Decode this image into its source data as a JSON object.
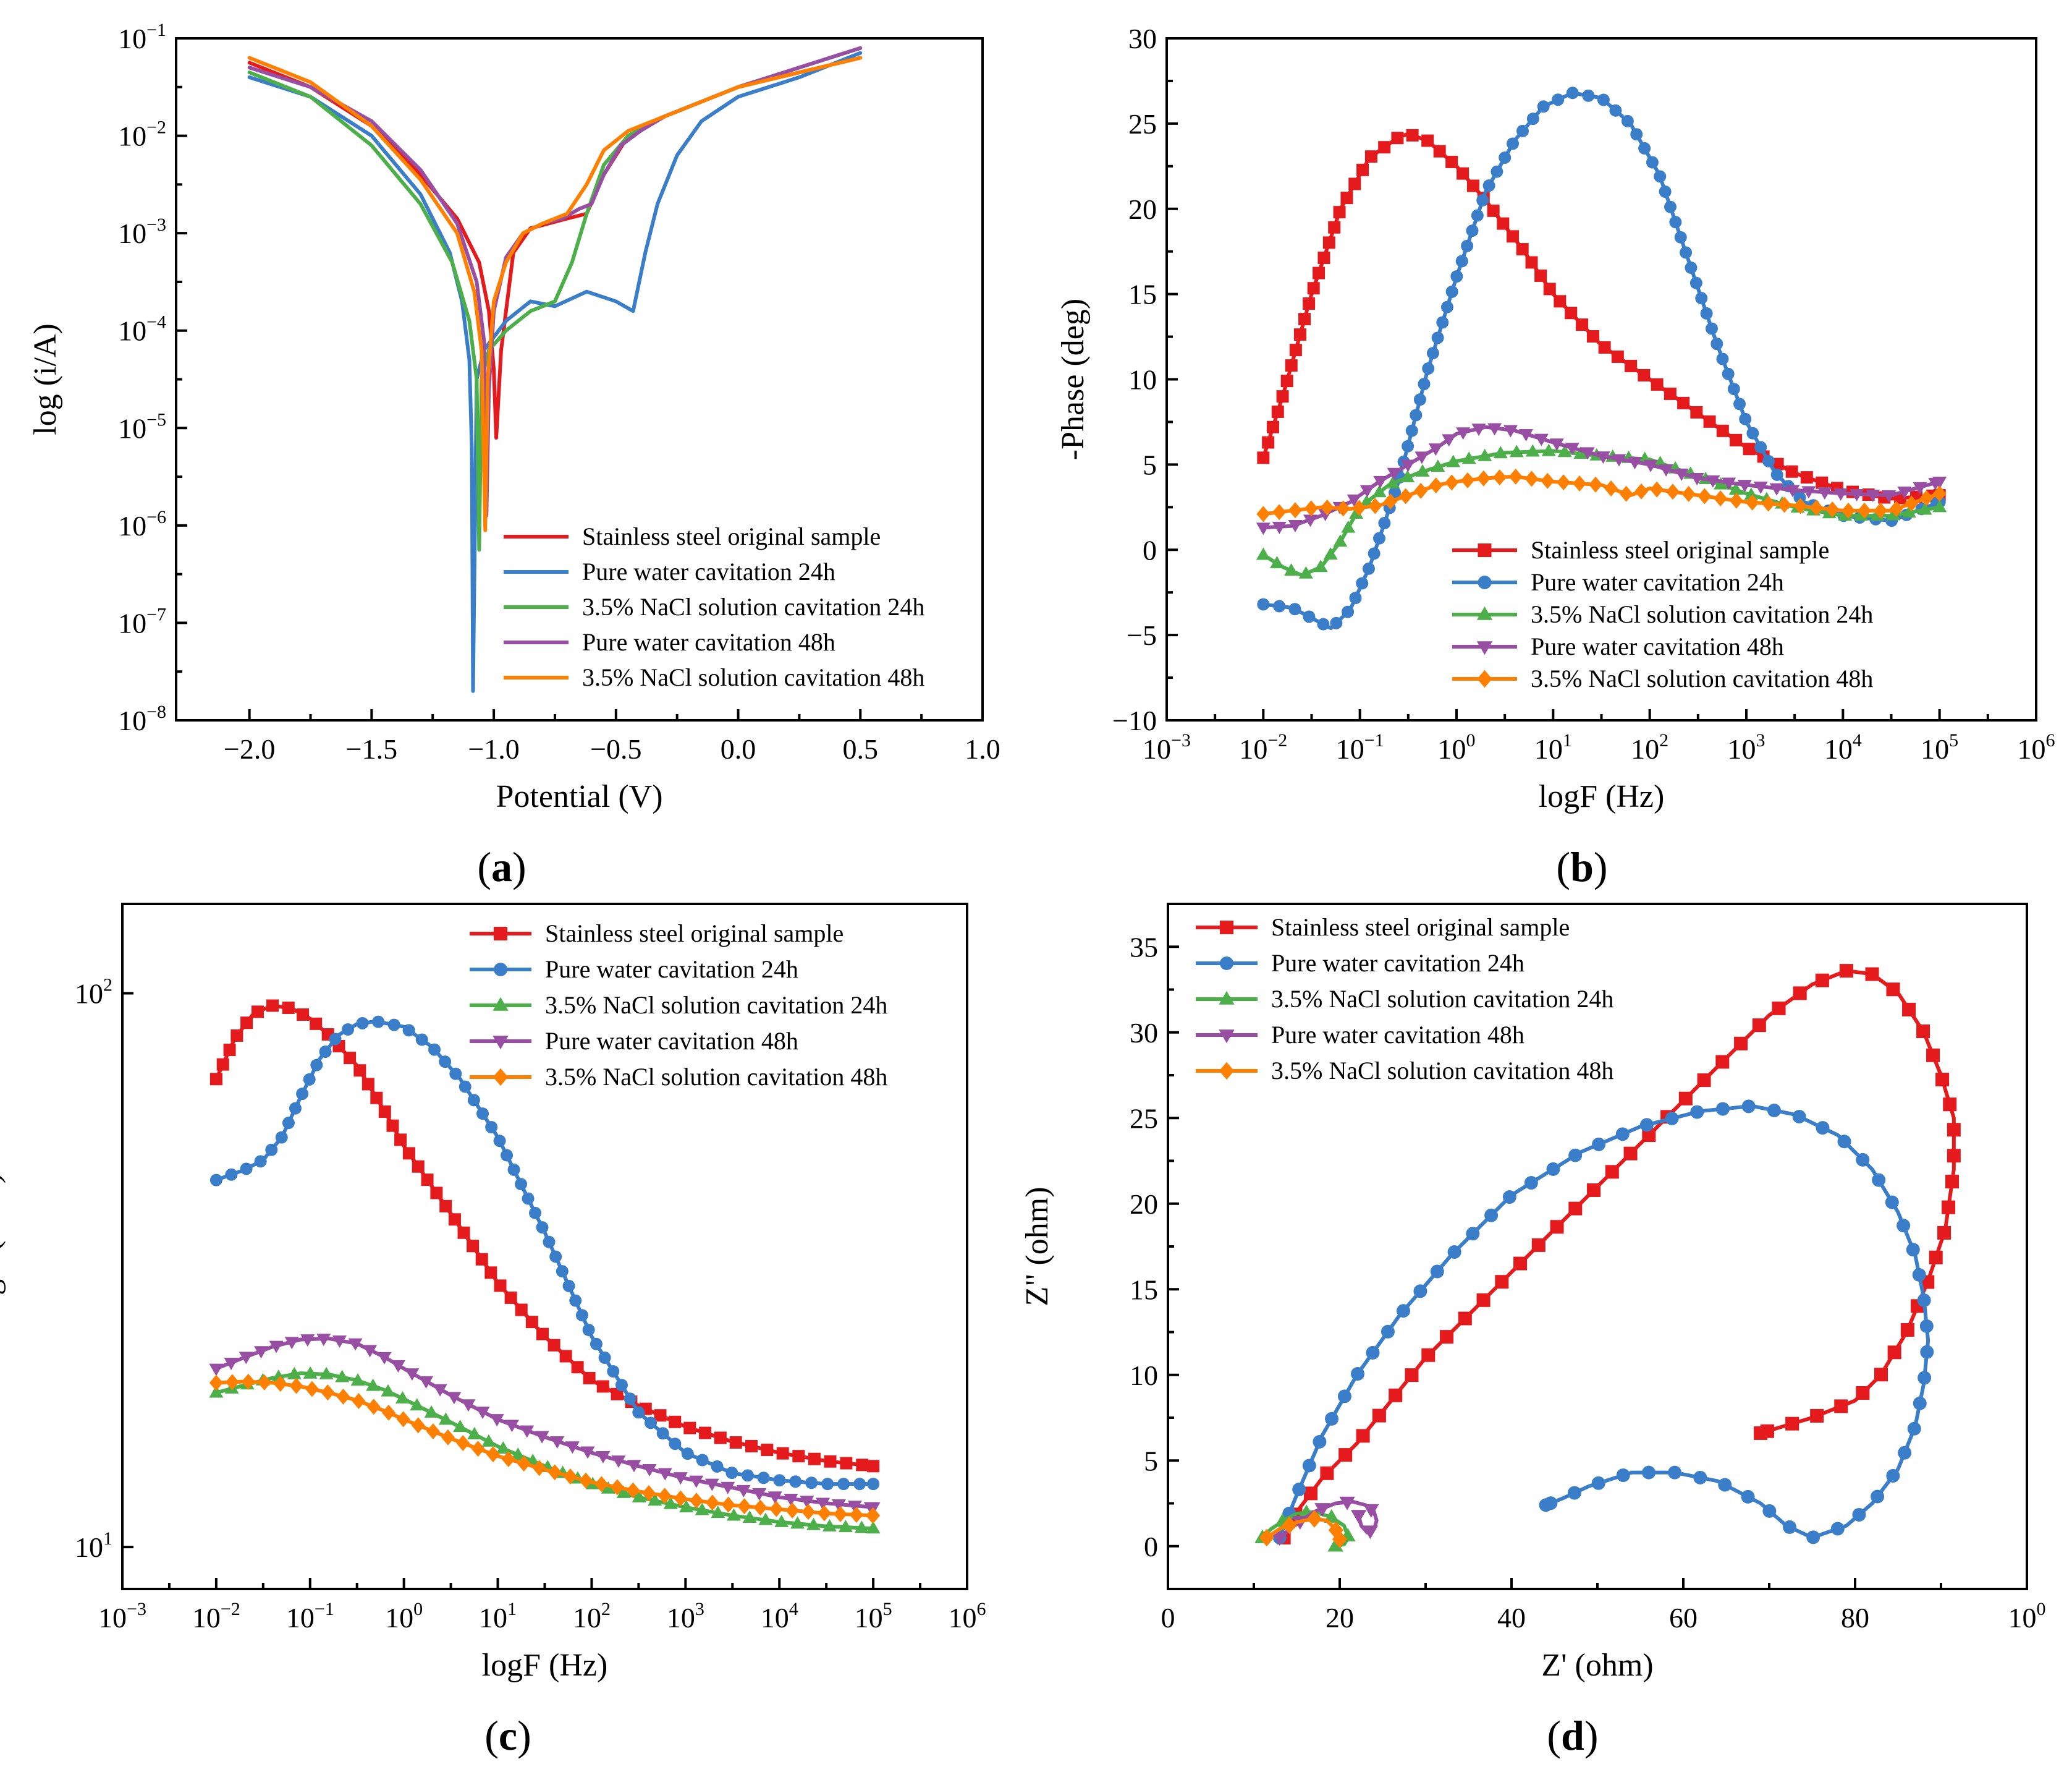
{
  "colors": {
    "original": "#e41a1c",
    "water24": "#3a7dc9",
    "nacl24": "#4daf4a",
    "water48": "#984ea3",
    "nacl48": "#ff7f00"
  },
  "legend_entries": [
    "Stainless steel original sample",
    "Pure water cavitation 24h",
    "3.5% NaCl solution cavitation 24h",
    "Pure water cavitation 48h",
    "3.5% NaCl solution cavitation 48h"
  ],
  "panel_labels": [
    "(a)",
    "(b)",
    "(c)",
    "(d)"
  ],
  "chart_data": [
    {
      "panel": "(a)",
      "type": "line",
      "xlabel": "Potential (V)",
      "ylabel": "log (i/A)",
      "xlim": [
        -2.3,
        1.0
      ],
      "ylim_log10": [
        -8,
        -1
      ],
      "x_ticks": [
        "−2.0",
        "−1.5",
        "−1.0",
        "−0.5",
        "0.0",
        "0.5",
        "1.0"
      ],
      "y_ticks": [
        "10-8",
        "10-7",
        "10-6",
        "10-5",
        "10-4",
        "10-3",
        "10-2",
        "10-1"
      ],
      "legend": "bottom-right",
      "series": [
        {
          "name": "Stainless steel original sample",
          "x": [
            -2.0,
            -1.75,
            -1.5,
            -1.3,
            -1.15,
            -1.06,
            -1.02,
            -1.0,
            -0.99,
            -0.97,
            -0.92,
            -0.85,
            -0.7,
            -0.62,
            -0.55,
            -0.45,
            -0.3,
            0.0,
            0.25,
            0.5
          ],
          "y": [
            -1.25,
            -1.5,
            -1.9,
            -2.4,
            -2.85,
            -3.3,
            -3.8,
            -4.4,
            -5.1,
            -4.2,
            -3.2,
            -2.95,
            -2.85,
            -2.8,
            -2.4,
            -2.0,
            -1.8,
            -1.5,
            -1.35,
            -1.2
          ]
        },
        {
          "name": "Pure water cavitation 24h",
          "x": [
            -2.0,
            -1.75,
            -1.5,
            -1.3,
            -1.18,
            -1.13,
            -1.1,
            -1.09,
            -1.085,
            -1.07,
            -1.04,
            -0.95,
            -0.85,
            -0.75,
            -0.62,
            -0.5,
            -0.43,
            -0.38,
            -0.33,
            -0.25,
            -0.15,
            0.0,
            0.25,
            0.5
          ],
          "y": [
            -1.4,
            -1.6,
            -2.0,
            -2.6,
            -3.2,
            -3.7,
            -4.3,
            -5.2,
            -7.7,
            -4.5,
            -4.2,
            -3.9,
            -3.7,
            -3.75,
            -3.6,
            -3.7,
            -3.8,
            -3.2,
            -2.7,
            -2.2,
            -1.85,
            -1.6,
            -1.4,
            -1.15
          ]
        },
        {
          "name": "3.5% NaCl solution cavitation 24h",
          "x": [
            -2.0,
            -1.75,
            -1.5,
            -1.3,
            -1.17,
            -1.1,
            -1.07,
            -1.06,
            -1.05,
            -1.02,
            -0.95,
            -0.85,
            -0.75,
            -0.68,
            -0.62,
            -0.55,
            -0.45,
            -0.3,
            0.0,
            0.25,
            0.5
          ],
          "y": [
            -1.35,
            -1.6,
            -2.1,
            -2.7,
            -3.3,
            -3.9,
            -4.5,
            -6.25,
            -4.5,
            -4.2,
            -4.0,
            -3.8,
            -3.7,
            -3.3,
            -2.8,
            -2.3,
            -2.0,
            -1.8,
            -1.5,
            -1.3,
            -1.1
          ]
        },
        {
          "name": "Pure water cavitation 48h",
          "x": [
            -2.0,
            -1.75,
            -1.5,
            -1.3,
            -1.15,
            -1.07,
            -1.04,
            -1.03,
            -1.02,
            -1.0,
            -0.95,
            -0.88,
            -0.8,
            -0.72,
            -0.65,
            -0.6,
            -0.55,
            -0.48,
            -0.4,
            -0.3,
            0.0,
            0.25,
            0.5
          ],
          "y": [
            -1.3,
            -1.5,
            -1.85,
            -2.35,
            -2.9,
            -3.5,
            -4.1,
            -5.9,
            -4.6,
            -3.8,
            -3.25,
            -3.0,
            -2.9,
            -2.85,
            -2.75,
            -2.7,
            -2.4,
            -2.1,
            -1.95,
            -1.8,
            -1.5,
            -1.3,
            -1.1
          ]
        },
        {
          "name": "3.5% NaCl solution cavitation 48h",
          "x": [
            -2.0,
            -1.75,
            -1.5,
            -1.3,
            -1.15,
            -1.08,
            -1.05,
            -1.035,
            -1.025,
            -1.0,
            -0.95,
            -0.88,
            -0.8,
            -0.7,
            -0.62,
            -0.55,
            -0.45,
            -0.3,
            0.0,
            0.25,
            0.5
          ],
          "y": [
            -1.2,
            -1.45,
            -1.9,
            -2.45,
            -3.0,
            -3.6,
            -4.2,
            -6.05,
            -4.5,
            -3.7,
            -3.3,
            -3.0,
            -2.9,
            -2.8,
            -2.5,
            -2.15,
            -1.95,
            -1.8,
            -1.5,
            -1.35,
            -1.2
          ]
        }
      ]
    },
    {
      "panel": "(b)",
      "type": "line",
      "xlabel": "logF (Hz)",
      "ylabel": "-Phase (deg)",
      "xlim_log10": [
        -3,
        6
      ],
      "ylim": [
        -10,
        30
      ],
      "x_ticks": [
        "10-3",
        "10-2",
        "10-1",
        "100",
        "101",
        "102",
        "103",
        "104",
        "105",
        "106"
      ],
      "y_ticks": [
        "−10",
        "−5",
        "0",
        "5",
        "10",
        "15",
        "20",
        "25",
        "30"
      ],
      "legend": "bottom-center",
      "series": [
        {
          "name": "Stainless steel original sample",
          "logx": [
            -2,
            -1.8,
            -1.5,
            -1.2,
            -0.9,
            -0.6,
            -0.5,
            -0.3,
            0,
            0.3,
            0.7,
            1,
            1.5,
            2,
            2.5,
            3,
            3.5,
            4,
            4.5,
            5
          ],
          "y": [
            5.4,
            9,
            15,
            20,
            23,
            24.2,
            24.4,
            24,
            22.5,
            20.5,
            17.5,
            15,
            12,
            10,
            8,
            6,
            4.5,
            3.5,
            3,
            3.2
          ]
        },
        {
          "name": "Pure water cavitation 24h",
          "logx": [
            -2,
            -1.7,
            -1.5,
            -1.3,
            -1.1,
            -0.9,
            -0.6,
            -0.3,
            0,
            0.3,
            0.6,
            0.9,
            1.2,
            1.5,
            1.8,
            2.1,
            2.4,
            2.7,
            3,
            3.3,
            3.6,
            4,
            4.5,
            5
          ],
          "y": [
            -3.2,
            -3.4,
            -4.0,
            -4.6,
            -3.5,
            -1.0,
            4.0,
            10.5,
            16,
            21,
            24,
            26,
            26.8,
            26.5,
            25,
            22,
            17,
            12,
            7.5,
            4.5,
            2.8,
            2.0,
            1.7,
            2.8
          ]
        },
        {
          "name": "3.5% NaCl solution cavitation 24h",
          "logx": [
            -2,
            -1.8,
            -1.6,
            -1.4,
            -1.2,
            -1,
            -0.7,
            -0.4,
            0,
            0.5,
            1,
            1.5,
            2,
            2.5,
            3,
            3.5,
            4,
            4.5,
            5
          ],
          "y": [
            -0.3,
            -1.0,
            -1.5,
            -1.0,
            0.5,
            2.5,
            3.8,
            4.5,
            5.2,
            5.7,
            5.8,
            5.5,
            5.3,
            4.3,
            3.3,
            2.5,
            2.0,
            2.0,
            2.5
          ]
        },
        {
          "name": "Pure water cavitation 48h",
          "logx": [
            -2,
            -1.7,
            -1.4,
            -1.1,
            -0.8,
            -0.5,
            -0.2,
            0,
            0.3,
            0.6,
            1,
            1.5,
            2,
            2.5,
            3,
            3.5,
            4,
            4.5,
            5
          ],
          "y": [
            1.3,
            1.4,
            2.0,
            2.8,
            4.0,
            5.0,
            6.0,
            6.8,
            7.2,
            7.0,
            6.3,
            5.5,
            5.0,
            4.2,
            3.8,
            3.5,
            3.3,
            3.2,
            4.0
          ]
        },
        {
          "name": "3.5% NaCl solution cavitation 48h",
          "logx": [
            -2,
            -1.7,
            -1.4,
            -1.1,
            -0.8,
            -0.5,
            -0.2,
            0,
            0.3,
            0.6,
            1,
            1.5,
            1.8,
            2,
            2.5,
            3,
            3.5,
            4,
            4.5,
            5
          ],
          "y": [
            2.1,
            2.3,
            2.5,
            2.4,
            2.6,
            3.2,
            3.8,
            4.0,
            4.2,
            4.3,
            4.0,
            3.8,
            3.2,
            3.6,
            3.2,
            2.8,
            2.6,
            2.3,
            2.3,
            3.3
          ]
        }
      ]
    },
    {
      "panel": "(c)",
      "type": "line",
      "xlabel": "logF (Hz)",
      "ylabel": "logZ (ohm)",
      "xlim_log10": [
        -3,
        6
      ],
      "ylim": [
        8.4,
        145
      ],
      "y_scale": "log",
      "x_ticks": [
        "10-3",
        "10-2",
        "10-1",
        "100",
        "101",
        "102",
        "103",
        "104",
        "105",
        "106"
      ],
      "y_ticks": [
        "101",
        "102"
      ],
      "legend": "top-right",
      "series": [
        {
          "name": "Stainless steel original sample",
          "logx": [
            -2,
            -1.8,
            -1.6,
            -1.4,
            -1.2,
            -1,
            -0.8,
            -0.5,
            -0.2,
            0,
            0.5,
            1,
            1.5,
            2,
            2.5,
            3,
            3.5,
            4,
            4.5,
            5
          ],
          "y": [
            70,
            83,
            92,
            95,
            94,
            90,
            84,
            74,
            61,
            53,
            40,
            30,
            24,
            20,
            18,
            16.5,
            15.5,
            14.8,
            14.3,
            14.0
          ]
        },
        {
          "name": "Pure water cavitation 24h",
          "logx": [
            -2,
            -1.7,
            -1.5,
            -1.3,
            -1.1,
            -0.9,
            -0.7,
            -0.5,
            -0.3,
            0,
            0.3,
            0.6,
            1,
            1.5,
            2,
            2.5,
            3,
            3.5,
            4,
            4.5,
            5
          ],
          "y": [
            46,
            48,
            50,
            55,
            65,
            76,
            84,
            88,
            89,
            87,
            80,
            70,
            55,
            37,
            24,
            17.5,
            14.8,
            13.6,
            13.2,
            13.0,
            13.0
          ]
        },
        {
          "name": "3.5% NaCl solution cavitation 24h",
          "logx": [
            -2,
            -1.7,
            -1.4,
            -1.1,
            -0.8,
            -0.5,
            -0.2,
            0,
            0.5,
            1,
            1.5,
            2,
            2.5,
            3,
            3.5,
            4,
            4.5,
            5
          ],
          "y": [
            19.0,
            19.6,
            20.2,
            20.6,
            20.5,
            20.0,
            19.2,
            18.5,
            16.8,
            15.2,
            14.0,
            13.0,
            12.3,
            11.8,
            11.4,
            11.1,
            10.9,
            10.8
          ]
        },
        {
          "name": "Pure water cavitation 48h",
          "logx": [
            -2,
            -1.7,
            -1.4,
            -1.1,
            -0.8,
            -0.5,
            -0.2,
            0,
            0.5,
            1,
            1.5,
            2,
            2.5,
            3,
            3.5,
            4,
            4.5,
            5
          ],
          "y": [
            21.0,
            22.0,
            23.0,
            23.7,
            23.8,
            23.3,
            22.0,
            21.0,
            18.8,
            17.0,
            15.8,
            14.8,
            14.0,
            13.3,
            12.8,
            12.3,
            12.0,
            11.8
          ]
        },
        {
          "name": "3.5% NaCl solution cavitation 48h",
          "logx": [
            -2,
            -1.7,
            -1.4,
            -1.1,
            -0.8,
            -0.5,
            -0.2,
            0,
            0.5,
            1,
            1.5,
            2,
            2.5,
            3,
            3.5,
            4,
            4.5,
            5
          ],
          "y": [
            19.8,
            19.9,
            19.8,
            19.5,
            19.0,
            18.4,
            17.6,
            17.0,
            15.7,
            14.6,
            13.8,
            13.1,
            12.6,
            12.2,
            11.9,
            11.7,
            11.5,
            11.4
          ]
        }
      ]
    },
    {
      "panel": "(d)",
      "type": "scatter",
      "xlabel": "Z' (ohm)",
      "ylabel": "Z\" (ohm)",
      "xlim": [
        0,
        100
      ],
      "ylim": [
        -2.5,
        37.5
      ],
      "x_ticks": [
        "0",
        "20",
        "40",
        "60",
        "80",
        "100"
      ],
      "y_ticks": [
        "0",
        "5",
        "10",
        "15",
        "20",
        "25",
        "30",
        "35"
      ],
      "legend": "top-left",
      "series": [
        {
          "name": "Stainless steel original sample",
          "x": [
            13.5,
            15,
            18,
            22,
            26,
            30,
            35,
            40,
            45,
            50,
            55,
            60,
            65,
            70,
            75,
            79,
            82,
            85,
            88,
            90,
            91.5,
            91.5,
            90.5,
            88.5,
            86,
            83,
            80,
            75,
            69
          ],
          "y": [
            0.5,
            2,
            4,
            6,
            8.5,
            11,
            13.5,
            16,
            18.5,
            21,
            23.5,
            26,
            28.5,
            31,
            32.8,
            33.6,
            33.4,
            32.3,
            30,
            27.5,
            25,
            22,
            18.5,
            15.5,
            12.5,
            10,
            8.5,
            7.5,
            6.6
          ]
        },
        {
          "name": "Pure water cavitation 24h",
          "x": [
            13,
            15,
            18,
            22,
            27,
            33,
            40,
            48,
            55,
            62,
            68,
            73,
            78,
            82,
            85,
            87,
            88,
            88.5,
            88,
            87,
            85,
            82,
            79,
            75,
            72,
            69,
            64,
            59,
            54,
            49,
            46,
            44
          ],
          "y": [
            0.5,
            3,
            6.5,
            10,
            13.5,
            17,
            20.5,
            23,
            24.5,
            25.4,
            25.7,
            25.2,
            24,
            22,
            19.5,
            17,
            14.5,
            12,
            9.5,
            7,
            4.5,
            2.5,
            1.2,
            0.5,
            1.2,
            2.5,
            3.8,
            4.3,
            4.3,
            3.5,
            2.8,
            2.4
          ]
        },
        {
          "name": "3.5% NaCl solution cavitation 24h",
          "x": [
            11,
            12,
            13.5,
            15,
            17,
            19,
            20.5,
            21,
            20.5,
            19.5
          ],
          "y": [
            0.5,
            1.0,
            1.5,
            1.9,
            2.0,
            1.7,
            1.2,
            0.5,
            0.1,
            0.0
          ]
        },
        {
          "name": "Pure water cavitation 48h",
          "x": [
            13,
            15,
            17,
            19.5,
            21.5,
            23,
            24,
            24.3,
            24,
            23.2,
            22.5,
            22.2
          ],
          "y": [
            0.5,
            1.3,
            2.0,
            2.5,
            2.6,
            2.4,
            2.0,
            1.5,
            1.0,
            0.8,
            1.2,
            1.8
          ]
        },
        {
          "name": "3.5% NaCl solution cavitation 48h",
          "x": [
            11.5,
            13,
            15,
            17,
            18.5,
            19.5,
            20
          ],
          "y": [
            0.5,
            1.0,
            1.4,
            1.6,
            1.5,
            1.0,
            0.4
          ]
        }
      ]
    }
  ]
}
